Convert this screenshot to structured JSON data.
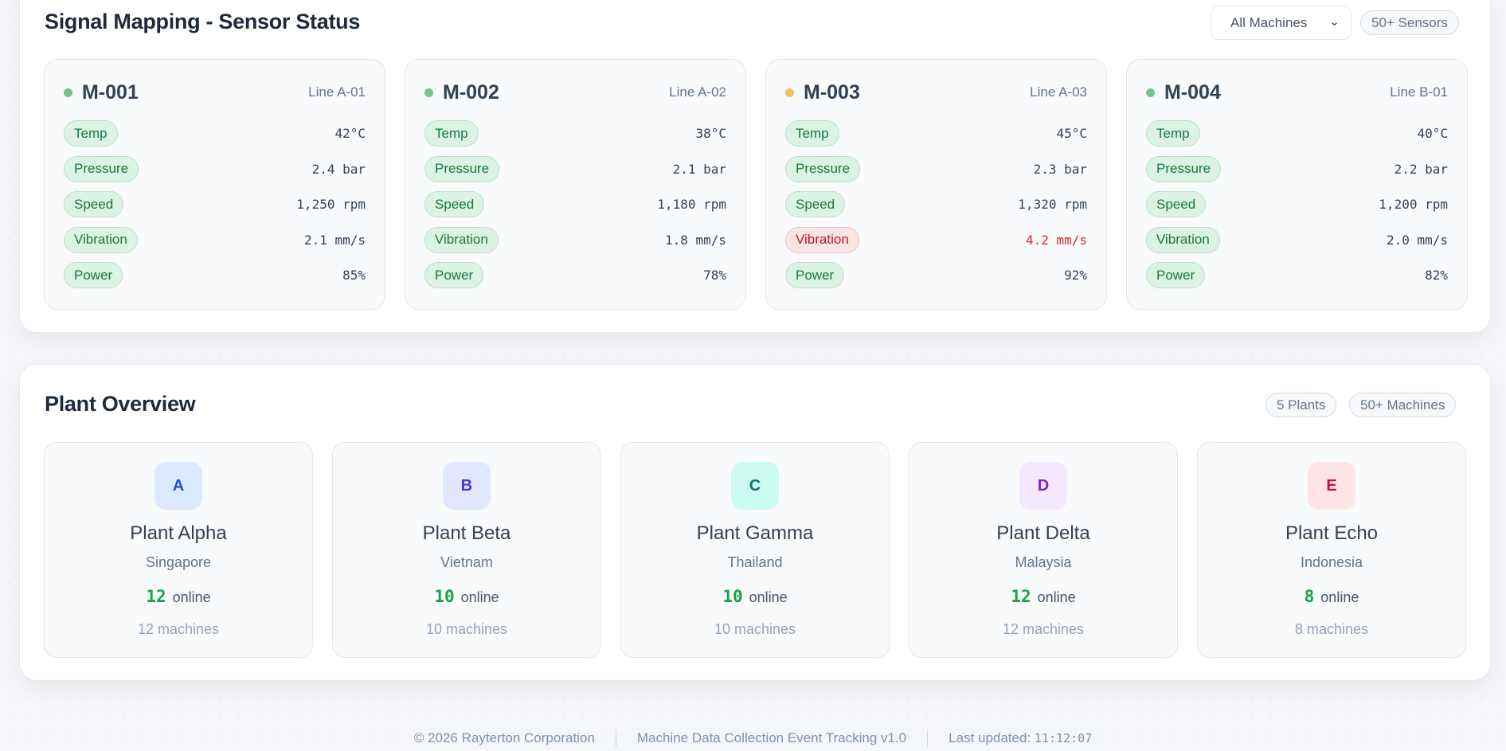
{
  "sensor_panel": {
    "title": "Signal Mapping - Sensor Status",
    "filter": "All Machines",
    "badge": "50+ Sensors",
    "machines": [
      {
        "id": "M-001",
        "line": "Line A-01",
        "status_color": "#6fc690",
        "rows": [
          {
            "label": "Temp",
            "value": "42°C"
          },
          {
            "label": "Pressure",
            "value": "2.4 bar"
          },
          {
            "label": "Speed",
            "value": "1,250 rpm"
          },
          {
            "label": "Vibration",
            "value": "2.1 mm/s"
          },
          {
            "label": "Power",
            "value": "85%"
          }
        ]
      },
      {
        "id": "M-002",
        "line": "Line A-02",
        "status_color": "#6fc690",
        "rows": [
          {
            "label": "Temp",
            "value": "38°C"
          },
          {
            "label": "Pressure",
            "value": "2.1 bar"
          },
          {
            "label": "Speed",
            "value": "1,180 rpm"
          },
          {
            "label": "Vibration",
            "value": "1.8 mm/s"
          },
          {
            "label": "Power",
            "value": "78%"
          }
        ]
      },
      {
        "id": "M-003",
        "line": "Line A-03",
        "status_color": "#f2c062",
        "rows": [
          {
            "label": "Temp",
            "value": "45°C"
          },
          {
            "label": "Pressure",
            "value": "2.3 bar"
          },
          {
            "label": "Speed",
            "value": "1,320 rpm"
          },
          {
            "label": "Vibration",
            "value": "4.2 mm/s",
            "warning": true
          },
          {
            "label": "Power",
            "value": "92%"
          }
        ]
      },
      {
        "id": "M-004",
        "line": "Line B-01",
        "status_color": "#6fc690",
        "rows": [
          {
            "label": "Temp",
            "value": "40°C"
          },
          {
            "label": "Pressure",
            "value": "2.2 bar"
          },
          {
            "label": "Speed",
            "value": "1,200 rpm"
          },
          {
            "label": "Vibration",
            "value": "2.0 mm/s"
          },
          {
            "label": "Power",
            "value": "82%"
          }
        ]
      }
    ]
  },
  "plant_panel": {
    "title": "Plant Overview",
    "badge_plants": "5 Plants",
    "badge_machines": "50+ Machines",
    "online_label": "online",
    "plants": [
      {
        "letter": "A",
        "name": "Plant Alpha",
        "location": "Singapore",
        "online": "12",
        "machines": "12 machines",
        "bg": "#dbeafe",
        "fg": "#1d4ed8"
      },
      {
        "letter": "B",
        "name": "Plant Beta",
        "location": "Vietnam",
        "online": "10",
        "machines": "10 machines",
        "bg": "#e0e7ff",
        "fg": "#4338ca"
      },
      {
        "letter": "C",
        "name": "Plant Gamma",
        "location": "Thailand",
        "online": "10",
        "machines": "10 machines",
        "bg": "#ccfbf1",
        "fg": "#0f766e"
      },
      {
        "letter": "D",
        "name": "Plant Delta",
        "location": "Malaysia",
        "online": "12",
        "machines": "12 machines",
        "bg": "#f3e8ff",
        "fg": "#7e22ce"
      },
      {
        "letter": "E",
        "name": "Plant Echo",
        "location": "Indonesia",
        "online": "8",
        "machines": "8 machines",
        "bg": "#ffe4e6",
        "fg": "#be123c"
      }
    ]
  },
  "footer": {
    "copyright": "© 2026 Rayterton Corporation",
    "app": "Machine Data Collection Event Tracking v1.0",
    "updated_label": "Last updated:",
    "updated_time": "11:12:07"
  }
}
